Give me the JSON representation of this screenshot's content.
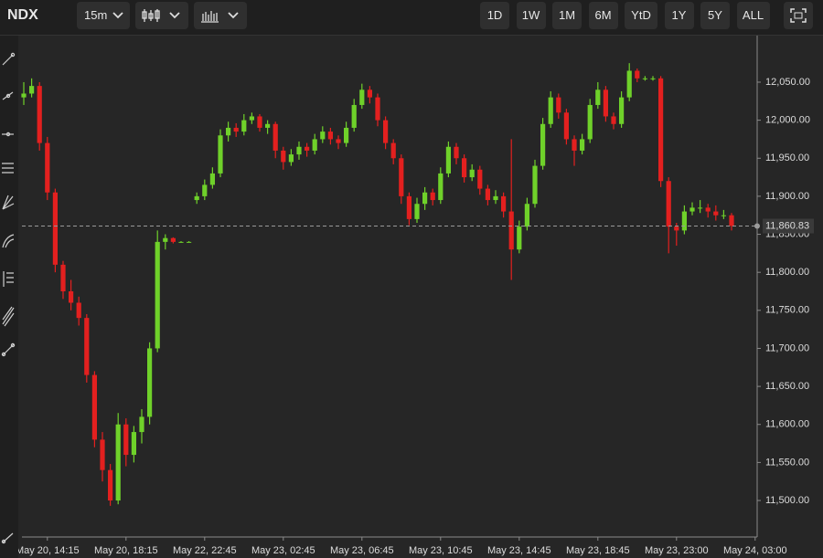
{
  "toolbar": {
    "symbol": "NDX",
    "interval": "15m",
    "ranges": [
      "1D",
      "1W",
      "1M",
      "6M",
      "YtD",
      "1Y",
      "5Y",
      "ALL"
    ]
  },
  "chart_data": {
    "type": "candlestick",
    "x_labels": [
      "May 20, 14:15",
      "May 20, 18:15",
      "May 22, 22:45",
      "May 23, 02:45",
      "May 23, 06:45",
      "May 23, 10:45",
      "May 23, 14:45",
      "May 23, 18:45",
      "May 23, 23:00",
      "May 24, 03:00"
    ],
    "ohlc": [
      [
        12030,
        12050,
        12020,
        12035
      ],
      [
        12035,
        12055,
        12030,
        12045
      ],
      [
        12045,
        12050,
        11960,
        11970
      ],
      [
        11970,
        11978,
        11895,
        11905
      ],
      [
        11905,
        11910,
        11800,
        11810
      ],
      [
        11810,
        11815,
        11765,
        11775
      ],
      [
        11775,
        11790,
        11750,
        11760
      ],
      [
        11760,
        11768,
        11730,
        11740
      ],
      [
        11740,
        11745,
        11655,
        11665
      ],
      [
        11665,
        11670,
        11570,
        11580
      ],
      [
        11580,
        11590,
        11525,
        11540
      ],
      [
        11540,
        11548,
        11493,
        11500
      ],
      [
        11500,
        11615,
        11495,
        11600
      ],
      [
        11600,
        11608,
        11545,
        11560
      ],
      [
        11560,
        11598,
        11550,
        11590
      ],
      [
        11590,
        11620,
        11575,
        11610
      ],
      [
        11610,
        11708,
        11600,
        11700
      ],
      [
        11700,
        11855,
        11695,
        11840
      ],
      [
        11840,
        11850,
        11830,
        11845
      ],
      [
        11845,
        11846,
        11838,
        11840
      ],
      [
        11840,
        11841,
        11839,
        11840
      ],
      [
        11840,
        11841,
        11839,
        11840
      ],
      [
        11895,
        11905,
        11890,
        11900
      ],
      [
        11900,
        11922,
        11895,
        11915
      ],
      [
        11915,
        11938,
        11910,
        11930
      ],
      [
        11930,
        11988,
        11925,
        11980
      ],
      [
        11980,
        11998,
        11972,
        11990
      ],
      [
        11990,
        11996,
        11978,
        11985
      ],
      [
        11985,
        12008,
        11980,
        12000
      ],
      [
        12000,
        12010,
        11995,
        12005
      ],
      [
        12005,
        12008,
        11985,
        11990
      ],
      [
        11990,
        12000,
        11982,
        11995
      ],
      [
        11995,
        11998,
        11950,
        11960
      ],
      [
        11960,
        11965,
        11935,
        11945
      ],
      [
        11945,
        11962,
        11940,
        11955
      ],
      [
        11955,
        11972,
        11948,
        11965
      ],
      [
        11965,
        11970,
        11952,
        11960
      ],
      [
        11960,
        11982,
        11955,
        11975
      ],
      [
        11975,
        11992,
        11970,
        11985
      ],
      [
        11985,
        11990,
        11968,
        11975
      ],
      [
        11975,
        11980,
        11962,
        11970
      ],
      [
        11970,
        11998,
        11965,
        11990
      ],
      [
        11990,
        12028,
        11985,
        12020
      ],
      [
        12020,
        12048,
        12015,
        12040
      ],
      [
        12040,
        12045,
        12022,
        12030
      ],
      [
        12030,
        12035,
        11992,
        12000
      ],
      [
        12000,
        12005,
        11962,
        11970
      ],
      [
        11970,
        11975,
        11942,
        11950
      ],
      [
        11950,
        11955,
        11890,
        11900
      ],
      [
        11900,
        11905,
        11862,
        11870
      ],
      [
        11870,
        11898,
        11865,
        11890
      ],
      [
        11890,
        11912,
        11882,
        11905
      ],
      [
        11905,
        11910,
        11888,
        11895
      ],
      [
        11895,
        11938,
        11890,
        11930
      ],
      [
        11930,
        11972,
        11925,
        11965
      ],
      [
        11965,
        11970,
        11942,
        11950
      ],
      [
        11950,
        11955,
        11918,
        11925
      ],
      [
        11925,
        11942,
        11920,
        11935
      ],
      [
        11935,
        11940,
        11902,
        11910
      ],
      [
        11910,
        11915,
        11888,
        11895
      ],
      [
        11895,
        11908,
        11890,
        11900
      ],
      [
        11900,
        11905,
        11872,
        11880
      ],
      [
        11880,
        11975,
        11790,
        11830
      ],
      [
        11830,
        11868,
        11825,
        11860
      ],
      [
        11860,
        11898,
        11855,
        11890
      ],
      [
        11890,
        11948,
        11885,
        11940
      ],
      [
        11940,
        12003,
        11935,
        11995
      ],
      [
        11995,
        12038,
        11990,
        12030
      ],
      [
        12030,
        12035,
        12002,
        12010
      ],
      [
        12010,
        12015,
        11968,
        11975
      ],
      [
        11975,
        11980,
        11940,
        11960
      ],
      [
        11960,
        11982,
        11955,
        11975
      ],
      [
        11975,
        12028,
        11970,
        12020
      ],
      [
        12020,
        12050,
        12015,
        12040
      ],
      [
        12040,
        12045,
        11998,
        12005
      ],
      [
        12005,
        12010,
        11988,
        11995
      ],
      [
        11995,
        12038,
        11990,
        12030
      ],
      [
        12030,
        12075,
        12025,
        12065
      ],
      [
        12065,
        12068,
        12050,
        12055
      ],
      [
        12055,
        12058,
        12052,
        12055
      ],
      [
        12055,
        12058,
        12052,
        12055
      ],
      [
        12055,
        12058,
        11912,
        11920
      ],
      [
        11920,
        11925,
        11825,
        11860
      ],
      [
        11860,
        11865,
        11835,
        11855
      ],
      [
        11855,
        11888,
        11850,
        11880
      ],
      [
        11880,
        11892,
        11875,
        11885
      ],
      [
        11885,
        11895,
        11878,
        11885
      ],
      [
        11885,
        11890,
        11872,
        11880
      ],
      [
        11880,
        11888,
        11868,
        11875
      ],
      [
        11875,
        11882,
        11870,
        11875
      ],
      [
        11875,
        11878,
        11855,
        11861
      ]
    ],
    "ylim": [
      11452,
      12104
    ],
    "yticks": [
      {
        "value": 11500,
        "label": "11,500.00"
      },
      {
        "value": 11550,
        "label": "11,550.00"
      },
      {
        "value": 11600,
        "label": "11,600.00"
      },
      {
        "value": 11650,
        "label": "11,650.00"
      },
      {
        "value": 11700,
        "label": "11,700.00"
      },
      {
        "value": 11750,
        "label": "11,750.00"
      },
      {
        "value": 11800,
        "label": "11,800.00"
      },
      {
        "value": 11850,
        "label": "11,850.00"
      },
      {
        "value": 11900,
        "label": "11,900.00"
      },
      {
        "value": 11950,
        "label": "11,950.00"
      },
      {
        "value": 12000,
        "label": "12,000.00"
      },
      {
        "value": 12050,
        "label": "12,050.00"
      }
    ],
    "last_price": {
      "value": 11860.83,
      "label": "11,860.83"
    },
    "up_color": "#6fd12a",
    "down_color": "#e3201f",
    "grid": false
  }
}
